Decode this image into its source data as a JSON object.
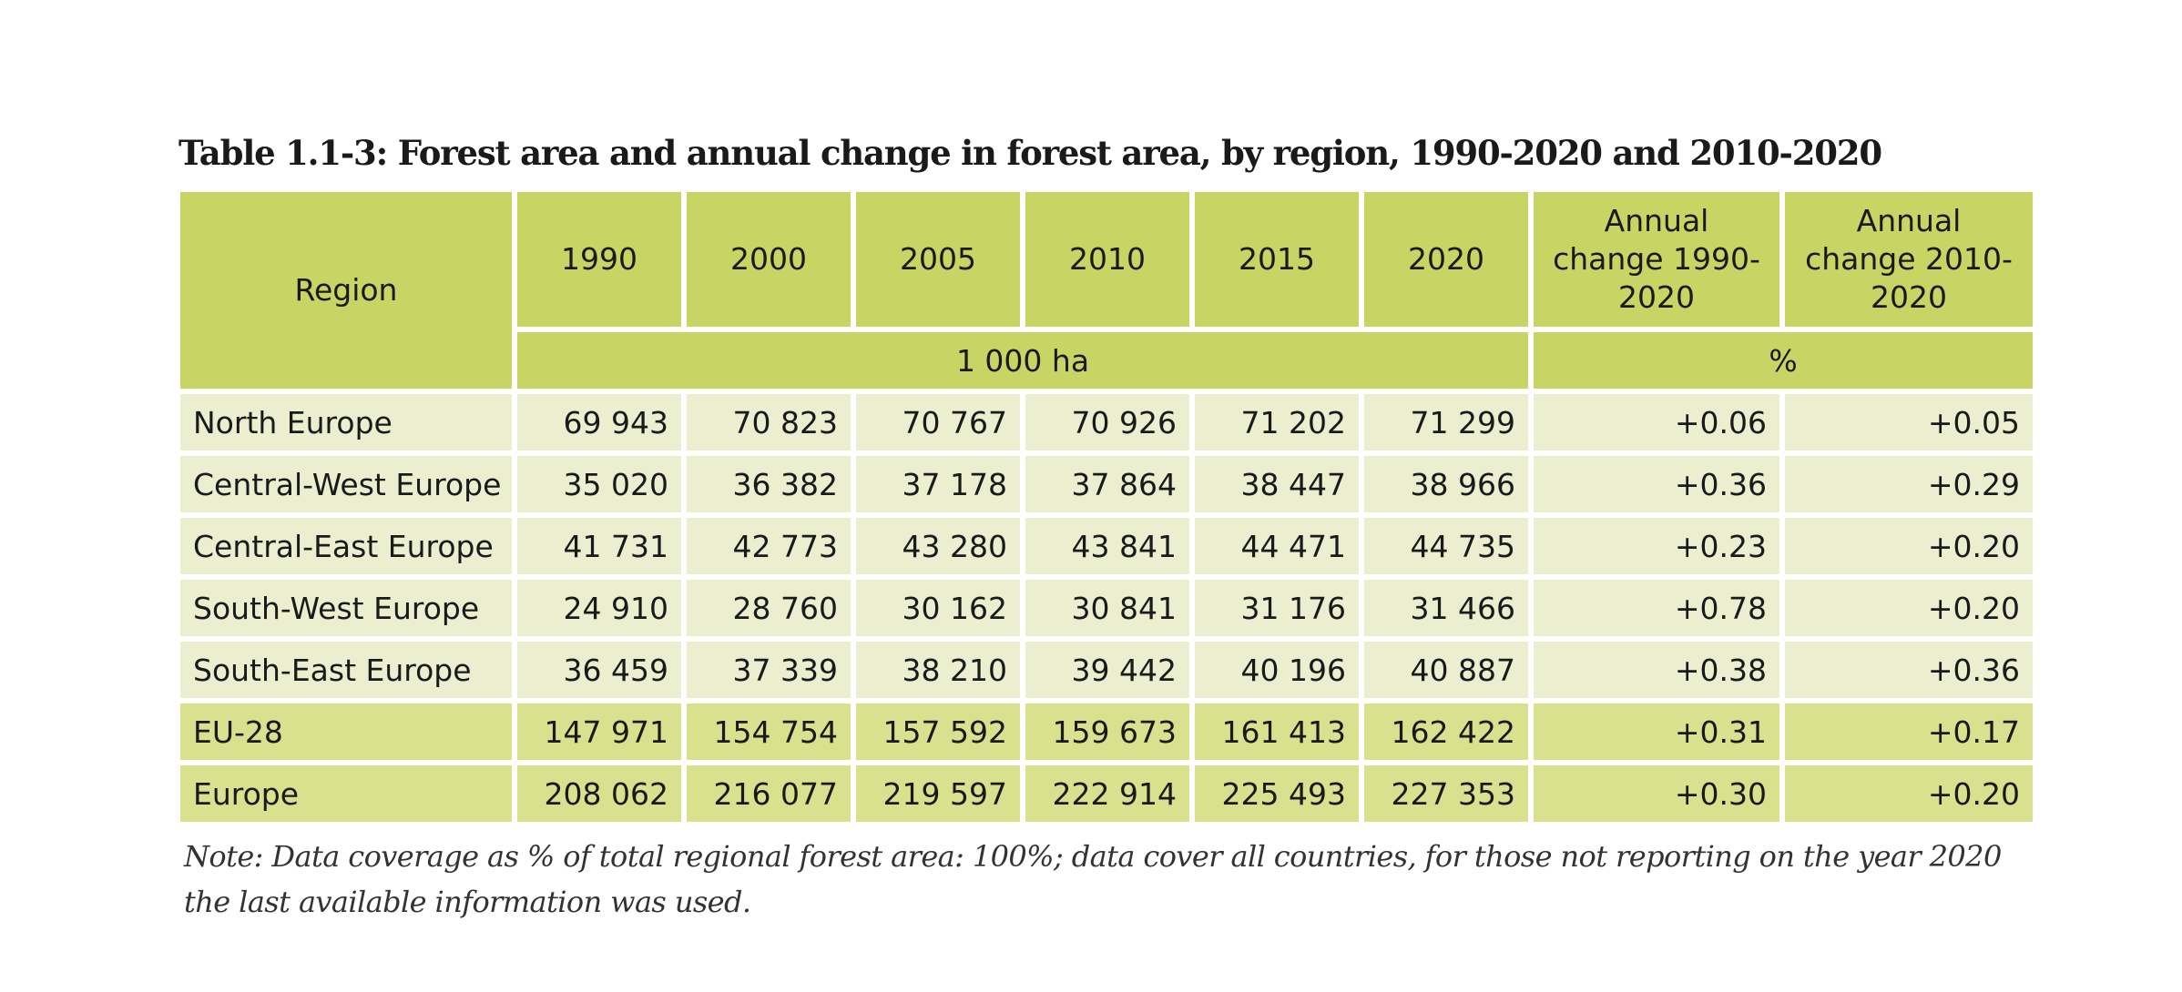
{
  "document": {
    "title": "Table 1.1-3: Forest area and annual change in forest area, by region, 1990-2020 and 2010-2020",
    "note": "Note: Data coverage as % of total regional forest area: 100%; data cover all countries, for those not reporting on the year 2020 the last available information was used."
  },
  "table": {
    "header": {
      "region": "Region",
      "years": [
        "1990",
        "2000",
        "2005",
        "2010",
        "2015",
        "2020"
      ],
      "change_1990_2020": "Annual change 1990-2020",
      "change_2010_2020": "Annual change 2010-2020",
      "unit_area": "1 000 ha",
      "unit_change": "%"
    },
    "rows": [
      {
        "region": "North Europe",
        "v": [
          "69 943",
          "70 823",
          "70 767",
          "70 926",
          "71 202",
          "71 299"
        ],
        "c1": "+0.06",
        "c2": "+0.05"
      },
      {
        "region": "Central-West Europe",
        "v": [
          "35 020",
          "36 382",
          "37 178",
          "37 864",
          "38 447",
          "38 966"
        ],
        "c1": "+0.36",
        "c2": "+0.29"
      },
      {
        "region": "Central-East Europe",
        "v": [
          "41 731",
          "42 773",
          "43 280",
          "43 841",
          "44 471",
          "44 735"
        ],
        "c1": "+0.23",
        "c2": "+0.20"
      },
      {
        "region": "South-West Europe",
        "v": [
          "24 910",
          "28 760",
          "30 162",
          "30 841",
          "31 176",
          "31 466"
        ],
        "c1": "+0.78",
        "c2": "+0.20"
      },
      {
        "region": "South-East Europe",
        "v": [
          "36 459",
          "37 339",
          "38 210",
          "39 442",
          "40 196",
          "40 887"
        ],
        "c1": "+0.38",
        "c2": "+0.36"
      },
      {
        "region": "EU-28",
        "v": [
          "147 971",
          "154 754",
          "157 592",
          "159 673",
          "161 413",
          "162 422"
        ],
        "c1": "+0.31",
        "c2": "+0.17"
      },
      {
        "region": "Europe",
        "v": [
          "208 062",
          "216 077",
          "219 597",
          "222 914",
          "225 493",
          "227 353"
        ],
        "c1": "+0.30",
        "c2": "+0.20"
      }
    ]
  },
  "colors": {
    "header": "#c8d464",
    "row": "#ebefd0",
    "total_row": "#d9e18f"
  }
}
